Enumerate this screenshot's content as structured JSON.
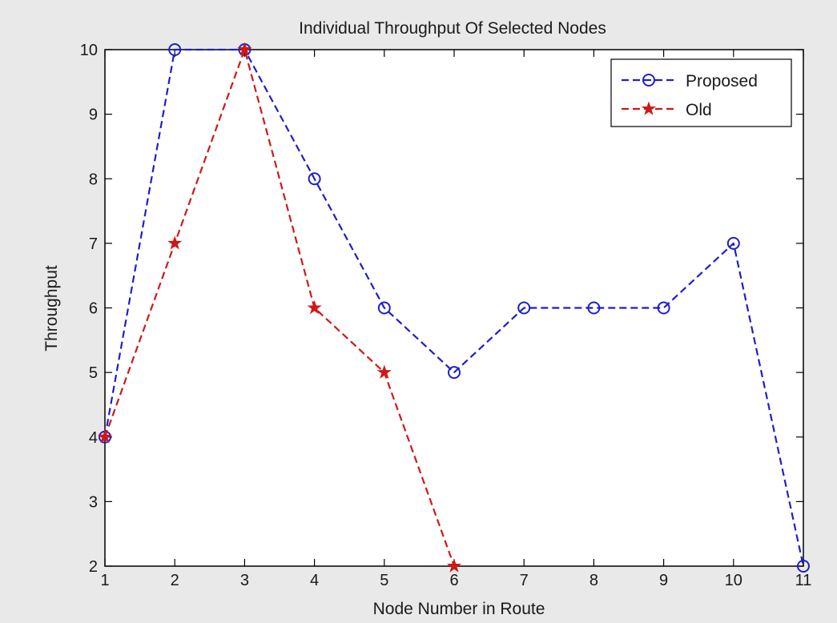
{
  "chart_data": {
    "type": "line",
    "title": "Individual Throughput Of Selected Nodes",
    "xlabel": "Node Number in Route",
    "ylabel": "Throughput",
    "xlim": [
      1,
      11
    ],
    "ylim": [
      2,
      10
    ],
    "x_ticks": [
      1,
      2,
      3,
      4,
      5,
      6,
      7,
      8,
      9,
      10,
      11
    ],
    "y_ticks": [
      2,
      3,
      4,
      5,
      6,
      7,
      8,
      9,
      10
    ],
    "grid": false,
    "legend_position": "top-right",
    "series": [
      {
        "name": "Proposed",
        "color": "#1f1fc8",
        "marker": "circle",
        "line_style": "dashed",
        "x": [
          1,
          2,
          3,
          4,
          5,
          6,
          7,
          8,
          9,
          10,
          11
        ],
        "y": [
          4,
          10,
          10,
          8,
          6,
          5,
          6,
          6,
          6,
          7,
          2
        ]
      },
      {
        "name": "Old",
        "color": "#d01818",
        "marker": "star",
        "line_style": "dashed",
        "x": [
          1,
          2,
          3,
          4,
          5,
          6
        ],
        "y": [
          4,
          7,
          10,
          6,
          5,
          2
        ]
      }
    ]
  }
}
